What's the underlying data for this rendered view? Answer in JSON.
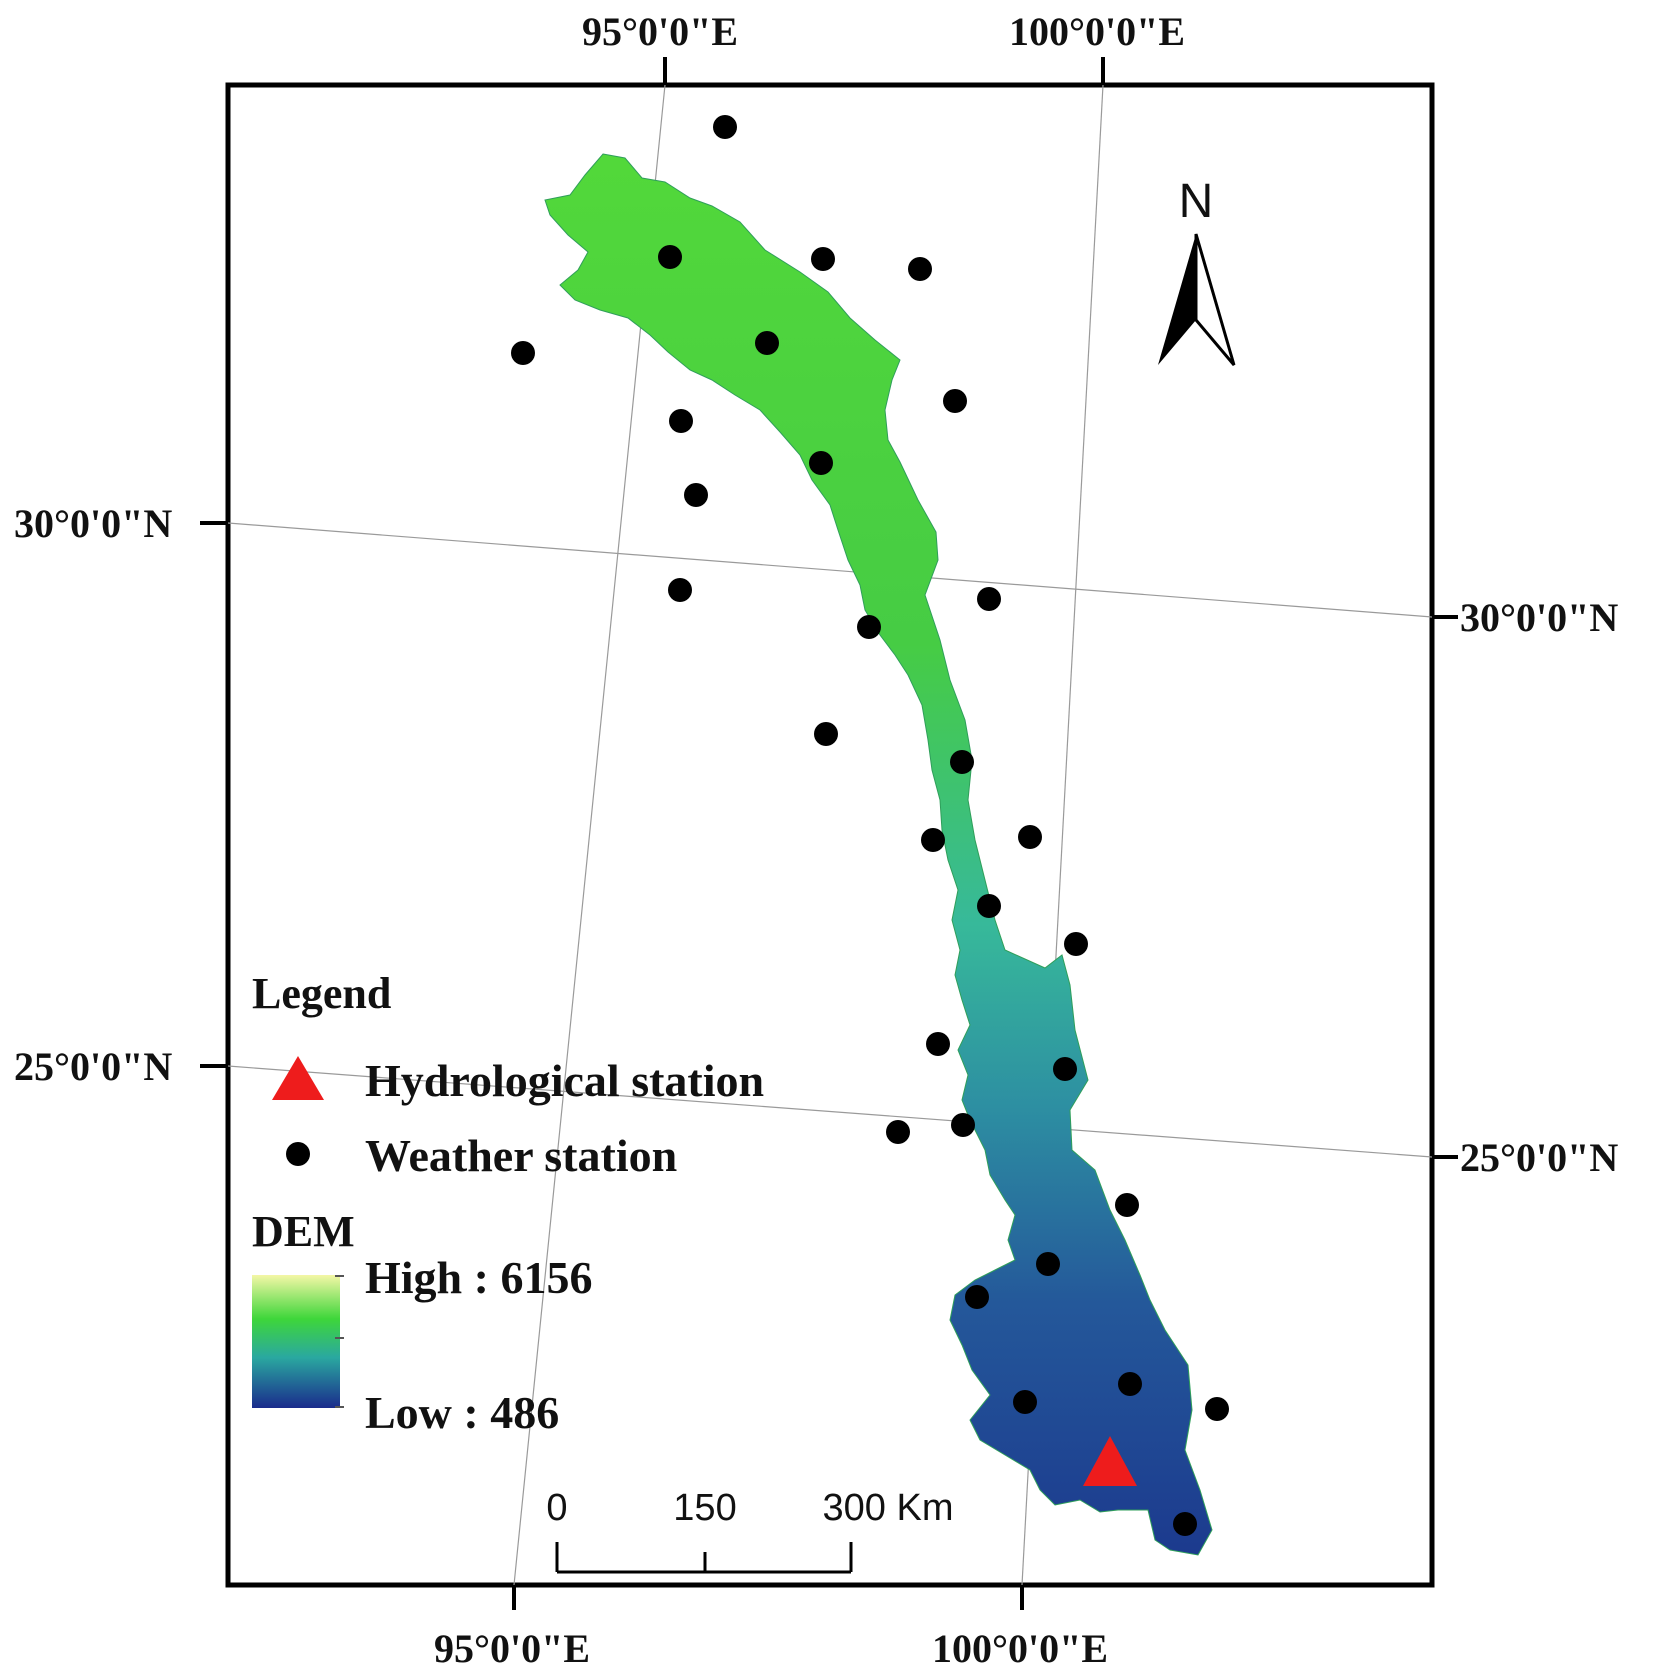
{
  "map": {
    "graticule_labels": {
      "top_left_lon": "95°0'0\"E",
      "top_right_lon": "100°0'0\"E",
      "bottom_left_lon": "95°0'0\"E",
      "bottom_right_lon": "100°0'0\"E",
      "left_upper_lat": "30°0'0\"N",
      "left_lower_lat": "25°0'0\"N",
      "right_upper_lat": "30°0'0\"N",
      "right_lower_lat": "25°0'0\"N"
    },
    "north_arrow": {
      "label": "N"
    },
    "scale_bar": {
      "tick_0": "0",
      "tick_1": "150",
      "tick_2": "300 Km"
    },
    "legend": {
      "title": "Legend",
      "hydro_label": "Hydrological station",
      "weather_label": "Weather station",
      "dem_title": "DEM",
      "dem_high": "High : 6156",
      "dem_low": "Low : 486"
    },
    "colors": {
      "dem_high": "#f4f7a6",
      "dem_mid_high": "#3ed63a",
      "dem_mid": "#2aa8a0",
      "dem_low": "#1a2b8c",
      "hydro_station": "#ee1c1c",
      "weather_station": "#000000"
    },
    "icons": [
      "north-arrow-icon",
      "triangle-icon",
      "dot-icon"
    ]
  }
}
